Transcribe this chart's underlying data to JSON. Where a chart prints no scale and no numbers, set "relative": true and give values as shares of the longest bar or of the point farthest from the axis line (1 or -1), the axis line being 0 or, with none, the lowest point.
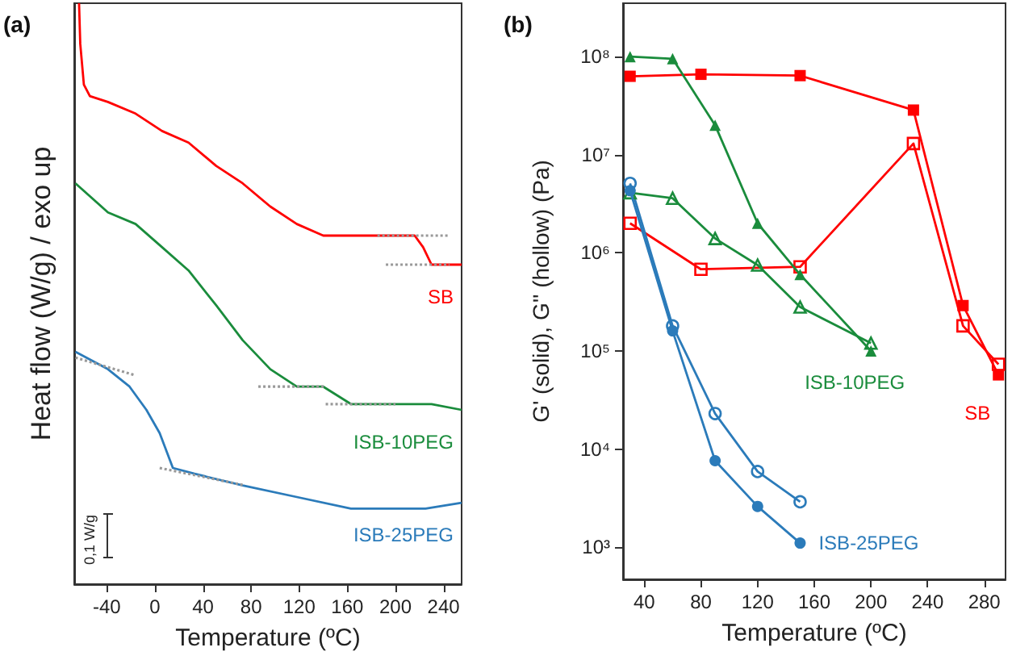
{
  "chart_data": [
    {
      "type": "line",
      "title": "(a)",
      "xlabel": "Temperature (ºC)",
      "ylabel": "Heat flow (W/g) / exo up",
      "relative": true,
      "xlim": [
        -67,
        255
      ],
      "xticks": [
        -40,
        0,
        40,
        80,
        120,
        160,
        200,
        240
      ],
      "tick_labels": "x",
      "marker": "none",
      "line_style": "solid",
      "grid": false,
      "legend": false,
      "annotations": [
        "0,1 W/g"
      ],
      "series": [
        {
          "name": "SB",
          "color": "#ff0000",
          "x": [
            -63,
            -62,
            -59,
            -54,
            -39,
            -16,
            6,
            28,
            51,
            73,
            96,
            118,
            140,
            163,
            185,
            216,
            223,
            230,
            239,
            255
          ],
          "values": [
            1.0,
            0.93,
            0.86,
            0.84,
            0.83,
            0.81,
            0.78,
            0.76,
            0.72,
            0.69,
            0.65,
            0.62,
            0.6,
            0.6,
            0.6,
            0.6,
            0.58,
            0.55,
            0.55,
            0.55
          ]
        },
        {
          "name": "ISB-10PEG",
          "color": "#1a8c3c",
          "x": [
            -66,
            -39,
            -16,
            6,
            28,
            51,
            73,
            96,
            118,
            140,
            163,
            185,
            212,
            230,
            255
          ],
          "values": [
            0.69,
            0.64,
            0.62,
            0.58,
            0.54,
            0.48,
            0.42,
            0.37,
            0.34,
            0.34,
            0.31,
            0.31,
            0.31,
            0.31,
            0.3
          ]
        },
        {
          "name": "ISB-25PEG",
          "color": "#2b7bba",
          "x": [
            -66,
            -39,
            -21,
            -7,
            4,
            15,
            33,
            73,
            118,
            163,
            203,
            225,
            255
          ],
          "values": [
            0.4,
            0.37,
            0.34,
            0.3,
            0.26,
            0.2,
            0.19,
            0.17,
            0.15,
            0.13,
            0.13,
            0.13,
            0.14
          ]
        },
        {
          "color": "#999999",
          "line_style": "dotted",
          "x": [
            185,
            245
          ],
          "values": [
            0.6,
            0.6
          ]
        },
        {
          "color": "#999999",
          "line_style": "dotted",
          "x": [
            192,
            245
          ],
          "values": [
            0.55,
            0.55
          ]
        },
        {
          "color": "#999999",
          "line_style": "dotted",
          "x": [
            86,
            142
          ],
          "values": [
            0.34,
            0.34
          ]
        },
        {
          "color": "#999999",
          "line_style": "dotted",
          "x": [
            142,
            200
          ],
          "values": [
            0.31,
            0.31
          ]
        },
        {
          "color": "#999999",
          "line_style": "dotted",
          "x": [
            -66,
            -17
          ],
          "values": [
            0.39,
            0.36
          ]
        },
        {
          "color": "#999999",
          "line_style": "dotted",
          "x": [
            4,
            75
          ],
          "values": [
            0.2,
            0.17
          ]
        }
      ]
    },
    {
      "type": "line",
      "title": "(b)",
      "xlabel": "Temperature (ºC)",
      "ylabel": "G' (solid), G'' (hollow) (Pa)",
      "log": "y",
      "xlim": [
        25,
        295
      ],
      "xticks": [
        40,
        80,
        120,
        160,
        200,
        240,
        280
      ],
      "ylim": [
        470,
        350000000
      ],
      "yticks": [
        {
          "value": 1000,
          "label": "10³"
        },
        {
          "value": 10000,
          "label": "10⁴"
        },
        {
          "value": 100000,
          "label": "10⁵"
        },
        {
          "value": 1000000,
          "label": "10⁶"
        },
        {
          "value": 10000000,
          "label": "10⁷"
        },
        {
          "value": 100000000,
          "label": "10⁸"
        }
      ],
      "grid": false,
      "legend": false,
      "line_style": "solid",
      "series": [
        {
          "name": "SB",
          "color": "#ff0000",
          "marker": "square",
          "x": [
            30,
            80,
            150,
            230,
            265,
            290
          ],
          "values": [
            63000000,
            66000000,
            64000000,
            28500000,
            290000,
            57000
          ]
        },
        {
          "color": "#ff0000",
          "marker": "square",
          "x": [
            30,
            80,
            150,
            230,
            265,
            290
          ],
          "values": [
            2000000,
            680000,
            720000,
            13000000,
            180000,
            73000
          ]
        },
        {
          "name": "ISB-10PEG",
          "color": "#1a8c3c",
          "marker": "triangle",
          "x": [
            30,
            60,
            90,
            120,
            150,
            200
          ],
          "values": [
            100000000,
            95000000,
            20000000,
            2000000,
            600000,
            100000
          ]
        },
        {
          "color": "#1a8c3c",
          "marker": "triangle",
          "x": [
            30,
            60,
            90,
            120,
            150,
            200
          ],
          "values": [
            4100000,
            3600000,
            1400000,
            750000,
            280000,
            120000
          ]
        },
        {
          "name": "ISB-25PEG",
          "color": "#2b7bba",
          "marker": "circle",
          "x": [
            30,
            60,
            90,
            120,
            150
          ],
          "values": [
            4300000,
            160000,
            7600,
            2600,
            1100
          ]
        },
        {
          "color": "#2b7bba",
          "marker": "circle",
          "x": [
            30,
            60,
            90,
            120,
            150
          ],
          "values": [
            5100000,
            180000,
            23000,
            5900,
            2900
          ]
        }
      ]
    }
  ]
}
